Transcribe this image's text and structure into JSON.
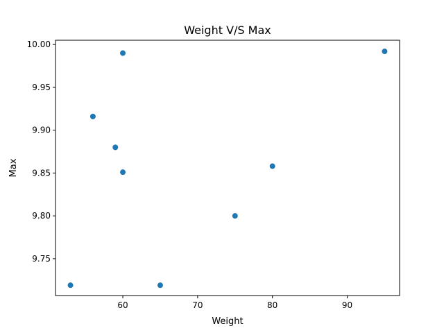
{
  "chart_data": {
    "type": "scatter",
    "title": "Weight V/S Max",
    "xlabel": "Weight",
    "ylabel": "Max",
    "xlim": [
      51,
      97
    ],
    "ylim": [
      9.707,
      10.005
    ],
    "xticks": [
      60,
      70,
      80,
      90
    ],
    "yticks": [
      9.75,
      9.8,
      9.85,
      9.9,
      9.95,
      10.0
    ],
    "xtick_labels": [
      "60",
      "70",
      "80",
      "90"
    ],
    "ytick_labels": [
      "9.75",
      "9.80",
      "9.85",
      "9.90",
      "9.95",
      "10.00"
    ],
    "grid": false,
    "color": "#1f77b4",
    "points": [
      {
        "x": 53,
        "y": 9.719
      },
      {
        "x": 56,
        "y": 9.916
      },
      {
        "x": 59,
        "y": 9.88
      },
      {
        "x": 60,
        "y": 9.99
      },
      {
        "x": 60,
        "y": 9.851
      },
      {
        "x": 65,
        "y": 9.719
      },
      {
        "x": 75,
        "y": 9.8
      },
      {
        "x": 80,
        "y": 9.858
      },
      {
        "x": 95,
        "y": 9.992
      }
    ]
  }
}
